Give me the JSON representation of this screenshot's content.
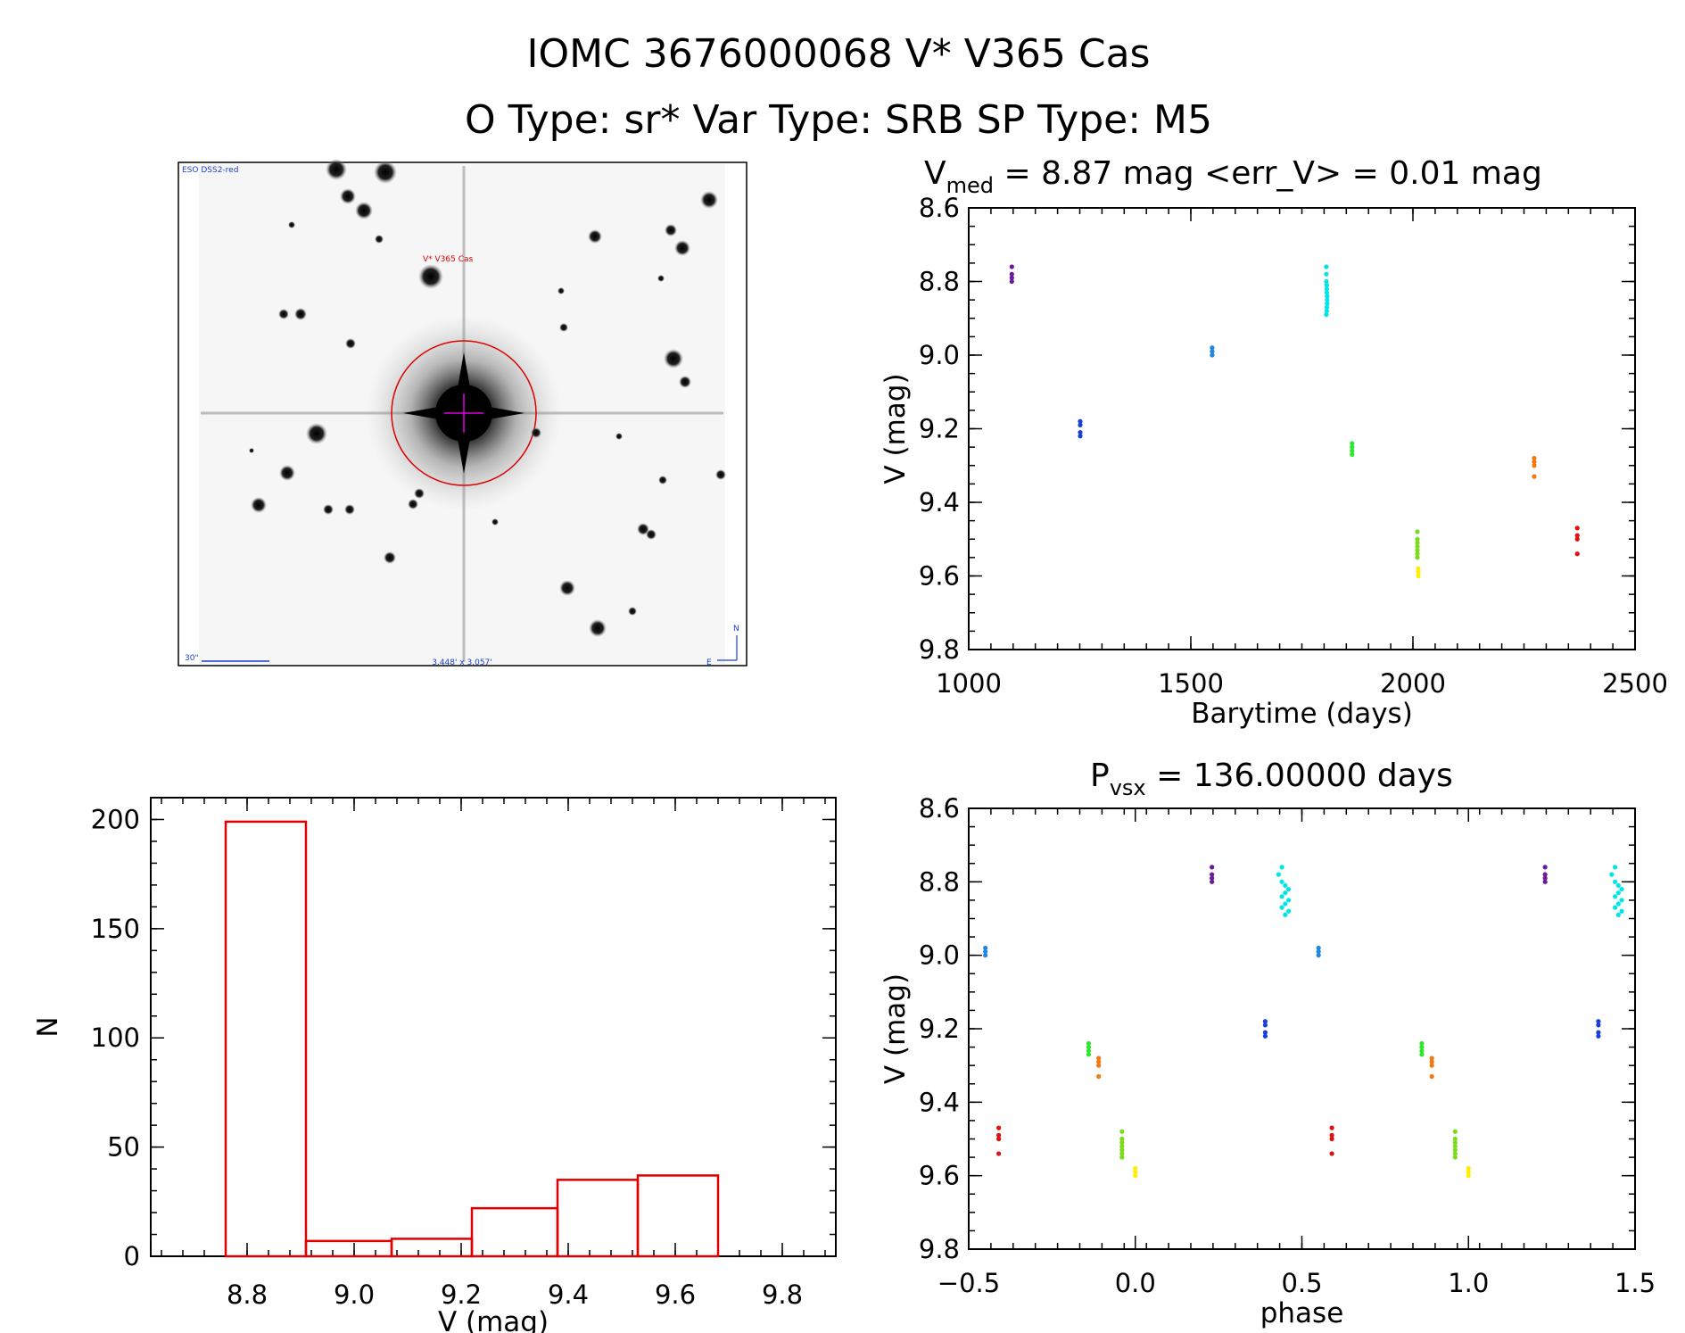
{
  "header": {
    "line1": "IOMC 3676000068   V* V365 Cas",
    "line2": "O Type: sr*  Var Type: SRB  SP Type: M5"
  },
  "finder_image": {
    "survey_label": "ESO DSS2-red",
    "target_label": "V* V365 Cas",
    "scale_label": "30\"",
    "fov_label": "3.448' x 3.057'",
    "compass_n": "N",
    "compass_e": "E"
  },
  "colors": {
    "histogram": "#e00000",
    "purple": "#6a1b9a",
    "blue": "#1a3fd6",
    "azure": "#1e88e5",
    "cyan": "#00e5e5",
    "green": "#2ee82e",
    "lime": "#7cdc1c",
    "yellow": "#ffee00",
    "orange": "#f07a10",
    "red": "#e01010"
  },
  "chart_data": [
    {
      "type": "scatter",
      "title_main": "V",
      "title_sub": "med",
      "title_rest": " = 8.87 mag <err_V> = 0.01 mag",
      "xlabel": "Barytime (days)",
      "ylabel": "V (mag)",
      "xlim": [
        1000,
        2500
      ],
      "ylim": [
        9.8,
        8.6
      ],
      "xticks": [
        "1000",
        "1500",
        "2000",
        "2500"
      ],
      "yticks": [
        "8.6",
        "8.8",
        "9.0",
        "9.2",
        "9.4",
        "9.6",
        "9.8"
      ],
      "series": [
        {
          "color": "purple",
          "x": [
            1097,
            1097,
            1097,
            1097
          ],
          "y": [
            8.76,
            8.78,
            8.79,
            8.8
          ]
        },
        {
          "color": "blue",
          "x": [
            1251,
            1251,
            1251,
            1251
          ],
          "y": [
            9.18,
            9.19,
            9.21,
            9.22
          ]
        },
        {
          "color": "azure",
          "x": [
            1548,
            1548,
            1548
          ],
          "y": [
            8.98,
            8.99,
            9.0
          ]
        },
        {
          "color": "cyan",
          "x": [
            1805,
            1805,
            1805,
            1806,
            1806,
            1806,
            1807,
            1807,
            1807,
            1806,
            1806,
            1805
          ],
          "y": [
            8.76,
            8.78,
            8.8,
            8.81,
            8.82,
            8.83,
            8.84,
            8.85,
            8.86,
            8.87,
            8.88,
            8.89
          ]
        },
        {
          "color": "green",
          "x": [
            1863,
            1863,
            1863,
            1863
          ],
          "y": [
            9.24,
            9.25,
            9.26,
            9.27
          ]
        },
        {
          "color": "lime",
          "x": [
            2010,
            2010,
            2010,
            2010,
            2010,
            2010,
            2010
          ],
          "y": [
            9.48,
            9.5,
            9.51,
            9.52,
            9.53,
            9.54,
            9.55
          ]
        },
        {
          "color": "yellow",
          "x": [
            2012,
            2012,
            2012
          ],
          "y": [
            9.58,
            9.59,
            9.6
          ]
        },
        {
          "color": "orange",
          "x": [
            2273,
            2273,
            2273,
            2273
          ],
          "y": [
            9.28,
            9.29,
            9.3,
            9.33
          ]
        },
        {
          "color": "red",
          "x": [
            2370,
            2370,
            2370,
            2370
          ],
          "y": [
            9.47,
            9.49,
            9.5,
            9.54
          ]
        }
      ]
    },
    {
      "type": "scatter",
      "title_main": "P",
      "title_sub": "vsx",
      "title_rest": " = 136.00000 days",
      "xlabel": "phase",
      "ylabel": "V (mag)",
      "xlim": [
        -0.5,
        1.5
      ],
      "ylim": [
        9.8,
        8.6
      ],
      "xticks": [
        "−0.5",
        "0.0",
        "0.5",
        "1.0",
        "1.5"
      ],
      "yticks": [
        "8.6",
        "8.8",
        "9.0",
        "9.2",
        "9.4",
        "9.6",
        "9.8"
      ],
      "series": [
        {
          "color": "purple",
          "x": [
            0.23,
            0.23,
            0.23,
            0.23,
            1.23,
            1.23,
            1.23,
            1.23
          ],
          "y": [
            8.76,
            8.78,
            8.79,
            8.8,
            8.76,
            8.78,
            8.79,
            8.8
          ]
        },
        {
          "color": "blue",
          "x": [
            0.39,
            0.39,
            0.39,
            0.39,
            1.39,
            1.39,
            1.39,
            1.39
          ],
          "y": [
            9.18,
            9.19,
            9.21,
            9.22,
            9.18,
            9.19,
            9.21,
            9.22
          ]
        },
        {
          "color": "azure",
          "x": [
            -0.45,
            -0.45,
            -0.45,
            0.55,
            0.55,
            0.55
          ],
          "y": [
            8.98,
            8.99,
            9.0,
            8.98,
            8.99,
            9.0
          ]
        },
        {
          "color": "cyan",
          "x": [
            0.44,
            0.43,
            0.44,
            0.45,
            0.46,
            0.45,
            0.44,
            0.46,
            0.45,
            0.44,
            0.46,
            0.45,
            1.44,
            1.43,
            1.44,
            1.45,
            1.46,
            1.45,
            1.44,
            1.46,
            1.45,
            1.44,
            1.46,
            1.45
          ],
          "y": [
            8.76,
            8.78,
            8.8,
            8.81,
            8.82,
            8.83,
            8.84,
            8.85,
            8.86,
            8.87,
            8.88,
            8.89,
            8.76,
            8.78,
            8.8,
            8.81,
            8.82,
            8.83,
            8.84,
            8.85,
            8.86,
            8.87,
            8.88,
            8.89
          ]
        },
        {
          "color": "green",
          "x": [
            -0.14,
            -0.14,
            -0.14,
            -0.14,
            0.86,
            0.86,
            0.86,
            0.86
          ],
          "y": [
            9.24,
            9.25,
            9.26,
            9.27,
            9.24,
            9.25,
            9.26,
            9.27
          ]
        },
        {
          "color": "lime",
          "x": [
            -0.04,
            -0.04,
            -0.04,
            -0.04,
            -0.04,
            -0.04,
            -0.04,
            0.96,
            0.96,
            0.96,
            0.96,
            0.96,
            0.96,
            0.96
          ],
          "y": [
            9.48,
            9.5,
            9.51,
            9.52,
            9.53,
            9.54,
            9.55,
            9.48,
            9.5,
            9.51,
            9.52,
            9.53,
            9.54,
            9.55
          ]
        },
        {
          "color": "yellow",
          "x": [
            0.0,
            0.0,
            0.0,
            1.0,
            1.0,
            1.0
          ],
          "y": [
            9.58,
            9.59,
            9.6,
            9.58,
            9.59,
            9.6
          ]
        },
        {
          "color": "orange",
          "x": [
            -0.11,
            -0.11,
            -0.11,
            -0.11,
            0.89,
            0.89,
            0.89,
            0.89
          ],
          "y": [
            9.28,
            9.29,
            9.3,
            9.33,
            9.28,
            9.29,
            9.3,
            9.33
          ]
        },
        {
          "color": "red",
          "x": [
            -0.41,
            -0.41,
            -0.41,
            -0.41,
            0.59,
            0.59,
            0.59,
            0.59
          ],
          "y": [
            9.47,
            9.49,
            9.5,
            9.54,
            9.47,
            9.49,
            9.5,
            9.54
          ]
        }
      ]
    },
    {
      "type": "bar",
      "xlabel": "V (mag)",
      "ylabel": "N",
      "xlim": [
        8.62,
        9.9
      ],
      "ylim": [
        0,
        210
      ],
      "xticks": [
        "8.8",
        "9.0",
        "9.2",
        "9.4",
        "9.6",
        "9.8"
      ],
      "yticks": [
        "0",
        "50",
        "100",
        "150",
        "200"
      ],
      "bin_edges": [
        8.76,
        8.91,
        9.07,
        9.22,
        9.38,
        9.53,
        9.68
      ],
      "values": [
        199,
        7,
        8,
        22,
        35,
        37
      ]
    }
  ]
}
